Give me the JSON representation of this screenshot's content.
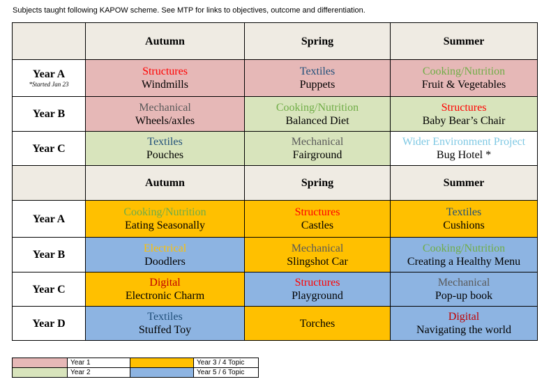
{
  "note": "Subjects taught following KAPOW scheme. See MTP for links to objectives, outcome and differentiation.",
  "colors": {
    "year1": "#e6b8b7",
    "year2": "#d8e4bc",
    "year34": "#ffc000",
    "year56": "#8db4e2",
    "header": "#efebe3",
    "structures": "#ff0000",
    "textiles": "#1f4e79",
    "cooking": "#70ad47",
    "mechanical": "#595959",
    "wider": "#7ec8e3",
    "electrical": "#ffc000",
    "digital": "#c00000"
  },
  "table1": {
    "headers": [
      "Autumn",
      "Spring",
      "Summer"
    ],
    "rows": [
      {
        "year": "Year A",
        "sub": "*Started Jan 23",
        "cells": [
          {
            "topic": "Structures",
            "item": "Windmills",
            "bg": "#e6b8b7",
            "tc": "#ff0000"
          },
          {
            "topic": "Textiles",
            "item": "Puppets",
            "bg": "#e6b8b7",
            "tc": "#1f4e79"
          },
          {
            "topic": "Cooking/Nutrition",
            "item": "Fruit & Vegetables",
            "bg": "#e6b8b7",
            "tc": "#70ad47"
          }
        ]
      },
      {
        "year": "Year B",
        "sub": "",
        "cells": [
          {
            "topic": "Mechanical",
            "item": "Wheels/axles",
            "bg": "#e6b8b7",
            "tc": "#595959"
          },
          {
            "topic": "Cooking/Nutrition",
            "item": "Balanced Diet",
            "bg": "#d8e4bc",
            "tc": "#70ad47"
          },
          {
            "topic": "Structures",
            "item": "Baby Bear’s Chair",
            "bg": "#d8e4bc",
            "tc": "#ff0000"
          }
        ]
      },
      {
        "year": "Year C",
        "sub": "",
        "cells": [
          {
            "topic": "Textiles",
            "item": "Pouches",
            "bg": "#d8e4bc",
            "tc": "#1f4e79"
          },
          {
            "topic": "Mechanical",
            "item": "Fairground",
            "bg": "#d8e4bc",
            "tc": "#595959"
          },
          {
            "topic": "Wider Environment Project",
            "item": "Bug Hotel *",
            "bg": "#ffffff",
            "tc": "#7ec8e3"
          }
        ]
      }
    ]
  },
  "table2": {
    "headers": [
      "Autumn",
      "Spring",
      "Summer"
    ],
    "rows": [
      {
        "year": "Year A",
        "cells": [
          {
            "topic": "Cooking/Nutrition",
            "item": "Eating Seasonally",
            "bg": "#ffc000",
            "tc": "#70ad47"
          },
          {
            "topic": "Structures",
            "item": "Castles",
            "bg": "#ffc000",
            "tc": "#ff0000"
          },
          {
            "topic": "Textiles",
            "item": "Cushions",
            "bg": "#ffc000",
            "tc": "#1f4e79"
          }
        ]
      },
      {
        "year": "Year B",
        "cells": [
          {
            "topic": "Electrical",
            "item": "Doodlers",
            "bg": "#8db4e2",
            "tc": "#ffc000"
          },
          {
            "topic": "Mechanical",
            "item": "Slingshot Car",
            "bg": "#ffc000",
            "tc": "#595959"
          },
          {
            "topic": "Cooking/Nutrition",
            "item": "Creating a Healthy Menu",
            "bg": "#8db4e2",
            "tc": "#70ad47"
          }
        ]
      },
      {
        "year": "Year C",
        "cells": [
          {
            "topic": "Digital",
            "item": "Electronic Charm",
            "bg": "#ffc000",
            "tc": "#c00000"
          },
          {
            "topic": "Structures",
            "item": "Playground",
            "bg": "#8db4e2",
            "tc": "#ff0000"
          },
          {
            "topic": "Mechanical",
            "item": "Pop-up book",
            "bg": "#8db4e2",
            "tc": "#595959"
          }
        ]
      },
      {
        "year": "Year D",
        "cells": [
          {
            "topic": "Textiles",
            "item": "Stuffed Toy",
            "bg": "#8db4e2",
            "tc": "#1f4e79"
          },
          {
            "topic": "",
            "item": "Torches",
            "bg": "#ffc000",
            "tc": "#000000"
          },
          {
            "topic": "Digital",
            "item": "Navigating the world",
            "bg": "#8db4e2",
            "tc": "#c00000"
          }
        ]
      }
    ]
  },
  "legend": [
    {
      "label": "Year 1",
      "color": "#e6b8b7"
    },
    {
      "label": "Year 3 / 4 Topic",
      "color": "#ffc000"
    },
    {
      "label": "Year 2",
      "color": "#d8e4bc"
    },
    {
      "label": "Year 5 / 6 Topic",
      "color": "#8db4e2"
    }
  ]
}
